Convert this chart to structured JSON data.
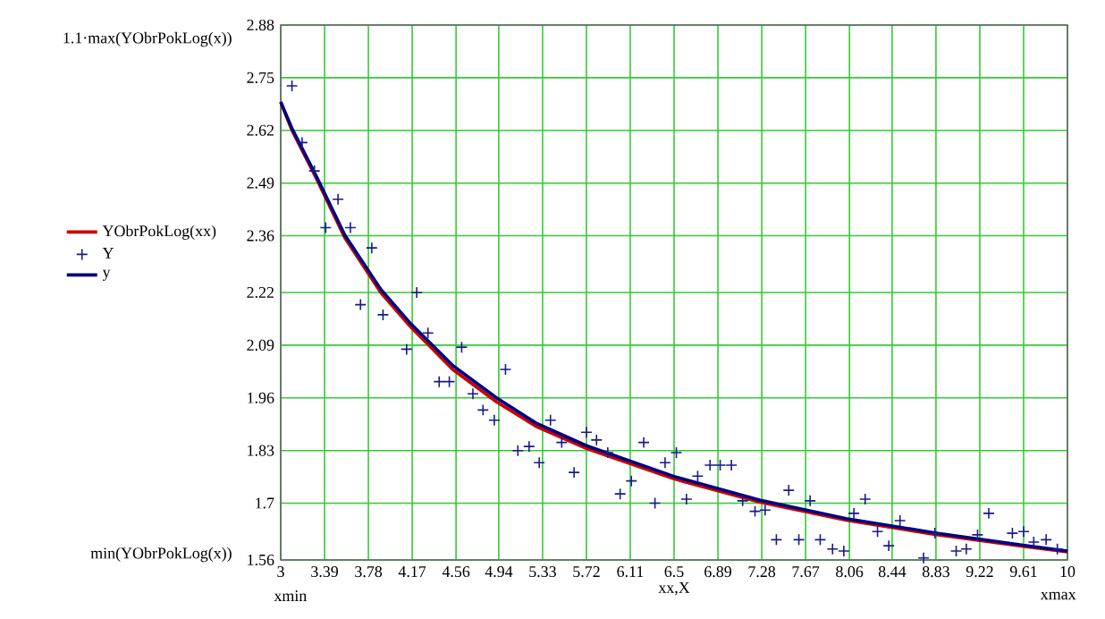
{
  "chart_data": {
    "type": "line",
    "xlabel": "xx,X",
    "annotations": [
      "1.1·max(YObrPokLog(x))",
      "min(YObrPokLog(x))",
      "xmin",
      "xmax"
    ],
    "xlim": [
      3,
      10
    ],
    "ylim": [
      1.56,
      2.88
    ],
    "xticks": [
      3,
      3.39,
      3.78,
      4.17,
      4.56,
      4.94,
      5.33,
      5.72,
      6.11,
      6.5,
      6.89,
      7.28,
      7.67,
      8.06,
      8.44,
      8.83,
      9.22,
      9.61,
      10
    ],
    "yticks": [
      1.56,
      1.7,
      1.83,
      1.96,
      2.09,
      2.22,
      2.36,
      2.49,
      2.62,
      2.75,
      2.88
    ],
    "grid": true,
    "legend": "left",
    "series": [
      {
        "name": "YObrPokLog(xx)",
        "color": "#cc0000",
        "line_style": "solid",
        "x": [
          3,
          3.1,
          3.32,
          3.57,
          3.89,
          4.16,
          4.53,
          4.92,
          5.27,
          5.72,
          6.5,
          7.26,
          8.03,
          8.82,
          9.62,
          10
        ],
        "values": [
          2.69,
          2.62,
          2.5,
          2.355,
          2.22,
          2.134,
          2.03,
          1.95,
          1.89,
          1.835,
          1.76,
          1.703,
          1.658,
          1.623,
          1.593,
          1.58
        ]
      },
      {
        "name": "Y",
        "type": "scatter",
        "color": "#1a1a8c",
        "marker": "cross",
        "x": [
          3.1,
          3.19,
          3.3,
          3.51,
          3.4,
          3.62,
          3.81,
          4.21,
          3.71,
          3.91,
          4.12,
          4.31,
          4.61,
          4.41,
          4.5,
          4.71,
          4.8,
          4.9,
          5.0,
          5.11,
          5.21,
          5.3,
          5.4,
          5.5,
          5.61,
          5.72,
          5.81,
          5.91,
          6.02,
          6.12,
          6.23,
          6.33,
          6.42,
          6.52,
          6.61,
          6.71,
          6.82,
          6.91,
          7.01,
          7.11,
          7.22,
          7.31,
          7.41,
          7.52,
          7.61,
          7.71,
          7.8,
          7.91,
          8.01,
          8.1,
          8.2,
          8.31,
          8.41,
          8.51,
          8.72,
          8.82,
          9.01,
          9.1,
          9.2,
          9.3,
          9.51,
          9.61,
          9.7,
          9.81,
          9.91
        ],
        "values": [
          2.73,
          2.59,
          2.52,
          2.45,
          2.38,
          2.38,
          2.33,
          2.22,
          2.19,
          2.165,
          2.08,
          2.12,
          2.085,
          2.0,
          2.0,
          1.97,
          1.93,
          1.905,
          2.03,
          1.83,
          1.84,
          1.8,
          1.905,
          1.85,
          1.776,
          1.875,
          1.856,
          1.825,
          1.723,
          1.755,
          1.85,
          1.7,
          1.8,
          1.825,
          1.71,
          1.767,
          1.794,
          1.794,
          1.794,
          1.706,
          1.68,
          1.683,
          1.61,
          1.732,
          1.61,
          1.706,
          1.61,
          1.587,
          1.582,
          1.675,
          1.71,
          1.63,
          1.595,
          1.657,
          1.565,
          1.626,
          1.582,
          1.587,
          1.622,
          1.675,
          1.626,
          1.63,
          1.604,
          1.61,
          1.587
        ]
      },
      {
        "name": "y",
        "color": "#000080",
        "line_style": "solid",
        "x": [
          3,
          3.1,
          3.32,
          3.57,
          3.89,
          4.16,
          4.53,
          4.92,
          5.27,
          5.72,
          6.5,
          7.26,
          8.03,
          8.82,
          9.62,
          10
        ],
        "values": [
          2.69,
          2.625,
          2.505,
          2.362,
          2.228,
          2.142,
          2.04,
          1.96,
          1.898,
          1.842,
          1.766,
          1.708,
          1.662,
          1.627,
          1.596,
          1.582
        ]
      }
    ]
  }
}
